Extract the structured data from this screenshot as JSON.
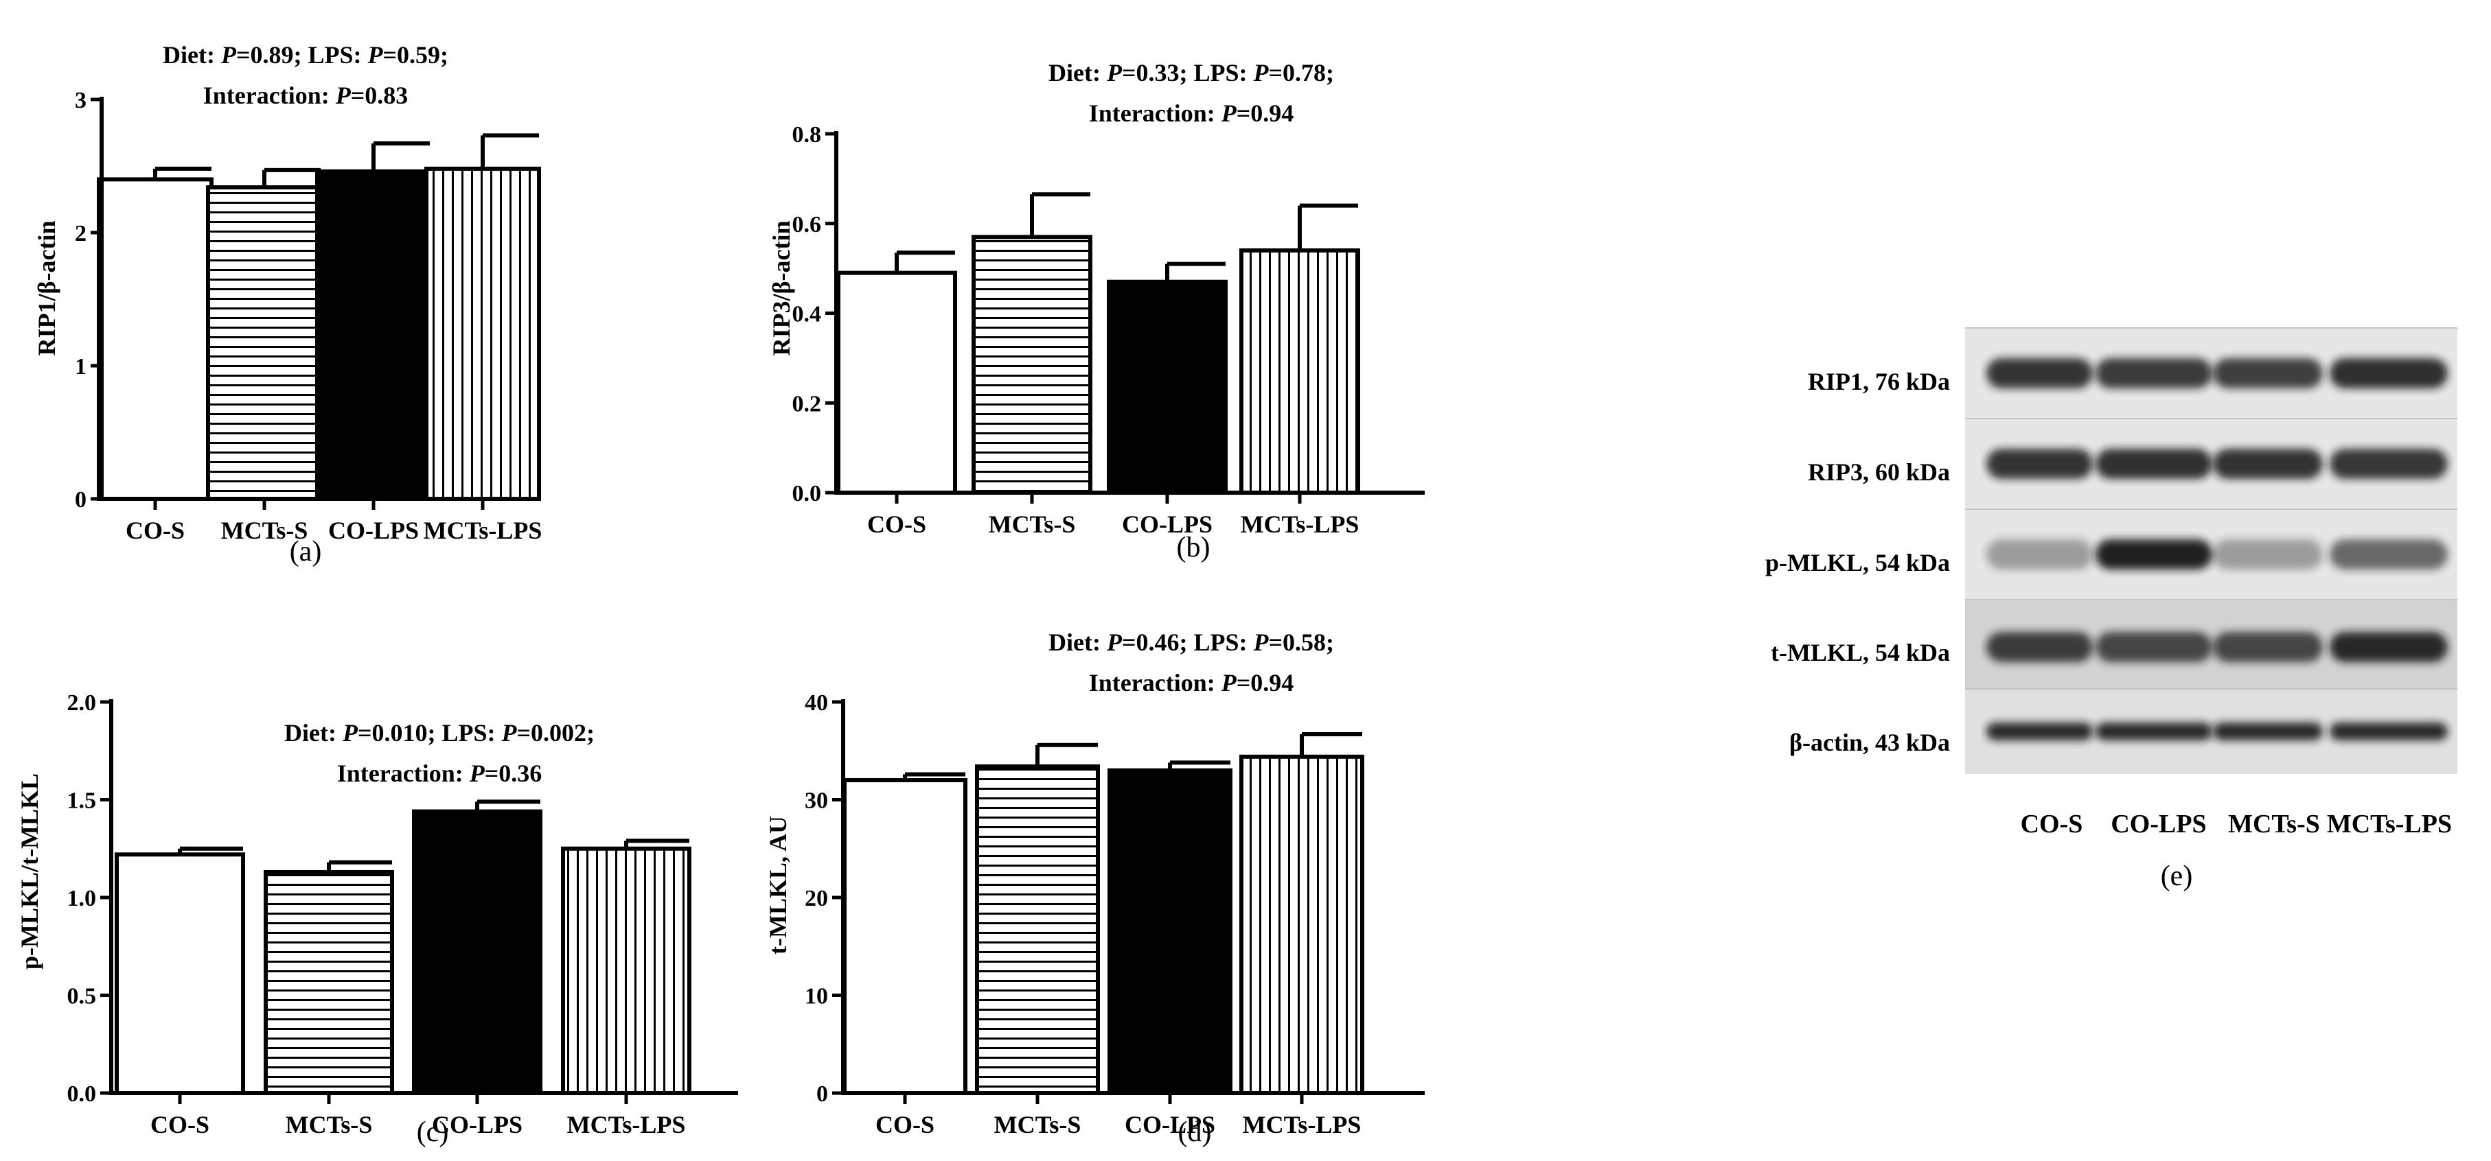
{
  "chart_data": [
    {
      "id": "a",
      "type": "bar",
      "panel_label": "(a)",
      "categories": [
        "CO-S",
        "MCTs-S",
        "CO-LPS",
        "MCTs-LPS"
      ],
      "values": [
        2.4,
        2.34,
        2.46,
        2.48
      ],
      "errors": [
        0.08,
        0.13,
        0.21,
        0.25
      ],
      "fills": [
        "white",
        "hstripe",
        "black",
        "vstripe"
      ],
      "ylabel": "RIP1/β-actin",
      "ylim": [
        0,
        3
      ],
      "yticks": [
        0,
        1,
        2,
        3
      ],
      "tick_labels": [
        "0",
        "1",
        "2",
        "3"
      ],
      "stats_line1": [
        "Diet: ",
        "P",
        "=0.89; LPS: ",
        "P",
        "=0.59;"
      ],
      "stats_line2": [
        "Interaction: ",
        "P",
        "=0.83"
      ]
    },
    {
      "id": "b",
      "type": "bar",
      "panel_label": "(b)",
      "categories": [
        "CO-S",
        "MCTs-S",
        "CO-LPS",
        "MCTs-LPS"
      ],
      "values": [
        0.49,
        0.57,
        0.47,
        0.54
      ],
      "errors": [
        0.045,
        0.095,
        0.04,
        0.1
      ],
      "fills": [
        "white",
        "hstripe",
        "black",
        "vstripe"
      ],
      "ylabel": "RIP3/β-actin",
      "ylim": [
        0,
        0.8
      ],
      "yticks": [
        0,
        0.2,
        0.4,
        0.6,
        0.8
      ],
      "tick_labels": [
        "0.0",
        "0.2",
        "0.4",
        "0.6",
        "0.8"
      ],
      "stats_line1": [
        "Diet: ",
        "P",
        "=0.33; LPS: ",
        "P",
        "=0.78;"
      ],
      "stats_line2": [
        "Interaction: ",
        "P",
        "=0.94"
      ]
    },
    {
      "id": "c",
      "type": "bar",
      "panel_label": "(c)",
      "categories": [
        "CO-S",
        "MCTs-S",
        "CO-LPS",
        "MCTs-LPS"
      ],
      "values": [
        1.22,
        1.13,
        1.44,
        1.25
      ],
      "errors": [
        0.03,
        0.05,
        0.05,
        0.04
      ],
      "fills": [
        "white",
        "hstripe",
        "black",
        "vstripe"
      ],
      "ylabel": "p-MLKL/t-MLKL",
      "ylim": [
        0,
        2.0
      ],
      "yticks": [
        0,
        0.5,
        1.0,
        1.5,
        2.0
      ],
      "tick_labels": [
        "0.0",
        "0.5",
        "1.0",
        "1.5",
        "2.0"
      ],
      "stats_line1": [
        "Diet: ",
        "P",
        "=0.010; LPS: ",
        "P",
        "=0.002;"
      ],
      "stats_line2": [
        "Interaction: ",
        "P",
        "=0.36"
      ]
    },
    {
      "id": "d",
      "type": "bar",
      "panel_label": "(d)",
      "categories": [
        "CO-S",
        "MCTs-S",
        "CO-LPS",
        "MCTs-LPS"
      ],
      "values": [
        32.0,
        33.4,
        33.0,
        34.4
      ],
      "errors": [
        0.6,
        2.2,
        0.8,
        2.3
      ],
      "fills": [
        "white",
        "hstripe",
        "black",
        "vstripe"
      ],
      "ylabel": "t-MLKL, AU",
      "ylim": [
        0,
        40
      ],
      "yticks": [
        0,
        10,
        20,
        30,
        40
      ],
      "tick_labels": [
        "0",
        "10",
        "20",
        "30",
        "40"
      ],
      "stats_line1": [
        "Diet: ",
        "P",
        "=0.46; LPS: ",
        "P",
        "=0.58;"
      ],
      "stats_line2": [
        "Interaction: ",
        "P",
        "=0.94"
      ]
    }
  ],
  "blot": {
    "panel_label": "(e)",
    "rows": [
      {
        "label": "RIP1, 76 kDa",
        "intensity": [
          0.85,
          0.82,
          0.8,
          0.88
        ]
      },
      {
        "label": "RIP3, 60 kDa",
        "intensity": [
          0.85,
          0.87,
          0.86,
          0.84
        ]
      },
      {
        "label": "p-MLKL, 54 kDa",
        "intensity": [
          0.35,
          0.95,
          0.35,
          0.6
        ]
      },
      {
        "label": "t-MLKL, 54 kDa",
        "intensity": [
          0.8,
          0.75,
          0.75,
          0.9
        ]
      },
      {
        "label": "β-actin, 43 kDa",
        "intensity": [
          0.9,
          0.9,
          0.9,
          0.9
        ]
      }
    ],
    "lanes": [
      "CO-S",
      "CO-LPS",
      "MCTs-S",
      "MCTs-LPS"
    ]
  },
  "colors": {
    "ink": "#000000",
    "background": "#ffffff",
    "blot_bg_light": "#e6e6e6",
    "blot_bg_dark": "#d2d2d2",
    "band": "#151515"
  }
}
